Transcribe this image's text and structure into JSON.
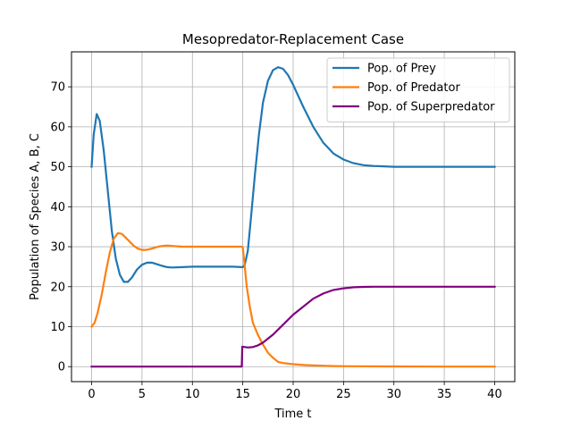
{
  "chart_data": {
    "type": "line",
    "title": "Mesopredator-Replacement Case",
    "xlabel": "Time t",
    "ylabel": "Population of Species A, B, C",
    "xlim": [
      -2,
      42
    ],
    "ylim": [
      -3.75,
      78.75
    ],
    "xticks": [
      0,
      5,
      10,
      15,
      20,
      25,
      30,
      35,
      40
    ],
    "yticks": [
      0,
      10,
      20,
      30,
      40,
      50,
      60,
      70
    ],
    "grid": true,
    "legend_position": "top-right",
    "series": [
      {
        "name": "Pop. of Prey",
        "color": "#1f77b4",
        "x": [
          0,
          0.2,
          0.5,
          0.8,
          1.2,
          1.6,
          2.0,
          2.4,
          2.8,
          3.2,
          3.6,
          4.0,
          4.5,
          5.0,
          5.5,
          6.0,
          6.5,
          7.0,
          7.5,
          8.0,
          9.0,
          10.0,
          11.0,
          12.0,
          13.0,
          14.0,
          14.9,
          15.0,
          15.2,
          15.5,
          15.8,
          16.2,
          16.6,
          17.0,
          17.5,
          18.0,
          18.5,
          19.0,
          19.5,
          20.0,
          21.0,
          22.0,
          23.0,
          24.0,
          25.0,
          26.0,
          27.0,
          28.0,
          29.0,
          30.0,
          32.0,
          35.0,
          40.0
        ],
        "y": [
          50,
          58,
          63.2,
          61.5,
          54,
          44,
          34,
          27,
          23,
          21.2,
          21.2,
          22.3,
          24.3,
          25.5,
          26,
          26,
          25.6,
          25.2,
          24.9,
          24.8,
          24.9,
          25,
          25,
          25,
          25,
          25,
          24.9,
          24.9,
          25.5,
          29,
          37,
          48,
          58,
          66,
          71.5,
          74.2,
          74.9,
          74.5,
          72.9,
          70.5,
          65,
          60,
          56,
          53.3,
          51.8,
          50.9,
          50.4,
          50.2,
          50.1,
          50,
          50,
          50,
          50
        ]
      },
      {
        "name": "Pop. of Predator",
        "color": "#ff7f0e",
        "x": [
          0,
          0.3,
          0.6,
          1.0,
          1.4,
          1.8,
          2.2,
          2.6,
          3.0,
          3.4,
          3.8,
          4.2,
          4.6,
          5.0,
          5.4,
          5.8,
          6.2,
          6.6,
          7.0,
          7.5,
          8.0,
          8.5,
          9.0,
          10.0,
          11.0,
          12.0,
          13.0,
          14.0,
          14.9,
          15.0,
          15.2,
          15.4,
          15.7,
          16.0,
          16.5,
          17.0,
          17.5,
          18.0,
          18.5,
          19.0,
          20.0,
          21.0,
          22.0,
          24.0,
          26.0,
          30.0,
          35.0,
          40.0
        ],
        "y": [
          10,
          11,
          13.5,
          18,
          23.5,
          28.5,
          32,
          33.4,
          33.2,
          32.2,
          31.2,
          30.2,
          29.5,
          29.2,
          29.2,
          29.4,
          29.7,
          30,
          30.2,
          30.3,
          30.2,
          30.1,
          30,
          30,
          30,
          30,
          30,
          30,
          30,
          29.8,
          25,
          20,
          15,
          11,
          8,
          5.5,
          3.5,
          2.2,
          1.2,
          0.9,
          0.6,
          0.4,
          0.3,
          0.15,
          0.1,
          0.05,
          0,
          0
        ]
      },
      {
        "name": "Pop. of Superpredator",
        "color": "#800080",
        "x": [
          0,
          5,
          10,
          14.9,
          14.95,
          15.0,
          15.5,
          16.0,
          16.5,
          17.0,
          17.5,
          18.0,
          19.0,
          20.0,
          21.0,
          22.0,
          23.0,
          24.0,
          25.0,
          26.0,
          27.0,
          28.0,
          29.0,
          30.0,
          35.0,
          40.0
        ],
        "y": [
          0,
          0,
          0,
          0,
          5,
          5,
          4.8,
          4.9,
          5.3,
          6,
          7,
          8,
          10.5,
          13,
          15,
          17,
          18.3,
          19.2,
          19.6,
          19.85,
          19.95,
          20,
          20,
          20,
          20,
          20
        ]
      }
    ]
  }
}
